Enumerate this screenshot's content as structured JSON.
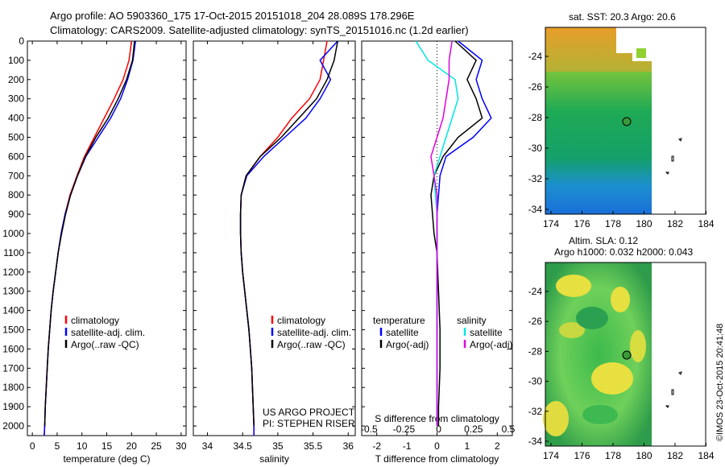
{
  "header": {
    "line1": "Argo profile: AO 5903360_175 17-Oct-2015 20151018_204 28.089S 178.296E",
    "line2": "Climatology: CARS2009. Satellite-adjusted climatology: synTS_20151016.nc (1.2d earlier)"
  },
  "colors": {
    "climatology": "#ff0000",
    "satellite": "#0000ff",
    "argo": "#000000",
    "s_sat": "#00e5e5",
    "s_argo": "#e000e0"
  },
  "chart_data": [
    {
      "type": "line",
      "id": "temperature",
      "xlabel": "temperature (deg C)",
      "ylabel": "",
      "xlim": [
        -1,
        31
      ],
      "ylim": [
        2050,
        0
      ],
      "xticks": [
        0,
        5,
        10,
        15,
        20,
        25,
        30
      ],
      "yticks": [
        0,
        100,
        200,
        300,
        400,
        500,
        600,
        700,
        800,
        900,
        1000,
        1100,
        1200,
        1300,
        1400,
        1500,
        1600,
        1700,
        1800,
        1900,
        2000
      ],
      "legend": [
        "climatology",
        "satellite-adj. clim.",
        "Argo(..raw -QC)"
      ],
      "series": [
        {
          "name": "climatology",
          "color": "red",
          "points": [
            [
              20.0,
              0
            ],
            [
              19.5,
              100
            ],
            [
              18.3,
              200
            ],
            [
              16.5,
              300
            ],
            [
              14.5,
              400
            ],
            [
              12.5,
              500
            ],
            [
              10.5,
              600
            ],
            [
              9.0,
              700
            ],
            [
              7.6,
              800
            ],
            [
              6.6,
              900
            ],
            [
              5.8,
              1000
            ],
            [
              5.2,
              1100
            ],
            [
              4.7,
              1200
            ],
            [
              4.2,
              1300
            ],
            [
              3.8,
              1400
            ],
            [
              3.5,
              1500
            ],
            [
              3.2,
              1600
            ],
            [
              3.0,
              1700
            ],
            [
              2.8,
              1800
            ],
            [
              2.6,
              1900
            ],
            [
              2.5,
              2000
            ],
            [
              2.4,
              2050
            ]
          ]
        },
        {
          "name": "satellite-adj. clim.",
          "color": "blue",
          "points": [
            [
              20.8,
              0
            ],
            [
              20.3,
              100
            ],
            [
              19.2,
              200
            ],
            [
              17.8,
              300
            ],
            [
              15.8,
              400
            ],
            [
              13.3,
              500
            ],
            [
              10.8,
              600
            ],
            [
              9.1,
              700
            ],
            [
              7.7,
              800
            ],
            [
              6.6,
              900
            ],
            [
              5.8,
              1000
            ],
            [
              5.2,
              1100
            ],
            [
              4.7,
              1200
            ],
            [
              4.2,
              1300
            ],
            [
              3.8,
              1400
            ],
            [
              3.5,
              1500
            ],
            [
              3.2,
              1600
            ],
            [
              3.0,
              1700
            ],
            [
              2.8,
              1800
            ],
            [
              2.6,
              1900
            ],
            [
              2.5,
              2000
            ],
            [
              2.4,
              2050
            ]
          ]
        },
        {
          "name": "Argo(..raw -QC)",
          "color": "black",
          "points": [
            [
              20.6,
              0
            ],
            [
              20.2,
              100
            ],
            [
              19.0,
              200
            ],
            [
              17.3,
              300
            ],
            [
              15.3,
              400
            ],
            [
              12.8,
              500
            ],
            [
              10.7,
              600
            ],
            [
              9.1,
              700
            ],
            [
              7.7,
              800
            ],
            [
              6.7,
              900
            ],
            [
              5.9,
              1000
            ],
            [
              5.2,
              1100
            ],
            [
              4.7,
              1200
            ],
            [
              4.2,
              1300
            ],
            [
              3.8,
              1400
            ],
            [
              3.5,
              1500
            ],
            [
              3.2,
              1600
            ],
            [
              3.0,
              1700
            ],
            [
              2.8,
              1800
            ],
            [
              2.6,
              1900
            ],
            [
              2.5,
              2000
            ]
          ]
        }
      ]
    },
    {
      "type": "line",
      "id": "salinity",
      "xlabel": "salinity",
      "ylabel": "",
      "xlim": [
        33.8,
        36.1
      ],
      "ylim": [
        2050,
        0
      ],
      "xticks": [
        34,
        34.5,
        35,
        35.5,
        36
      ],
      "legend": [
        "climatology",
        "satellite-adj. clim.",
        "Argo(..raw -QC)"
      ],
      "annotation": [
        "US ARGO PROJECT",
        "PI: STEPHEN RISER"
      ],
      "series": [
        {
          "name": "climatology",
          "color": "red",
          "points": [
            [
              35.7,
              0
            ],
            [
              35.65,
              100
            ],
            [
              35.6,
              200
            ],
            [
              35.45,
              300
            ],
            [
              35.2,
              400
            ],
            [
              35.0,
              500
            ],
            [
              34.75,
              600
            ],
            [
              34.55,
              700
            ],
            [
              34.48,
              800
            ],
            [
              34.47,
              900
            ],
            [
              34.47,
              1000
            ],
            [
              34.48,
              1100
            ],
            [
              34.5,
              1200
            ],
            [
              34.53,
              1300
            ],
            [
              34.56,
              1400
            ],
            [
              34.59,
              1500
            ],
            [
              34.61,
              1600
            ],
            [
              34.63,
              1700
            ],
            [
              34.64,
              1800
            ],
            [
              34.65,
              1900
            ],
            [
              34.66,
              2000
            ],
            [
              34.66,
              2050
            ]
          ]
        },
        {
          "name": "satellite-adj. clim.",
          "color": "blue",
          "points": [
            [
              35.85,
              0
            ],
            [
              35.6,
              100
            ],
            [
              35.75,
              200
            ],
            [
              35.6,
              300
            ],
            [
              35.4,
              400
            ],
            [
              35.1,
              500
            ],
            [
              34.8,
              600
            ],
            [
              34.56,
              700
            ],
            [
              34.48,
              800
            ],
            [
              34.47,
              900
            ],
            [
              34.47,
              1000
            ],
            [
              34.48,
              1100
            ],
            [
              34.5,
              1200
            ],
            [
              34.53,
              1300
            ],
            [
              34.56,
              1400
            ],
            [
              34.59,
              1500
            ],
            [
              34.61,
              1600
            ],
            [
              34.63,
              1700
            ],
            [
              34.64,
              1800
            ],
            [
              34.65,
              1900
            ],
            [
              34.66,
              2000
            ],
            [
              34.66,
              2050
            ]
          ]
        },
        {
          "name": "Argo(..raw -QC)",
          "color": "black",
          "points": [
            [
              35.85,
              0
            ],
            [
              35.8,
              100
            ],
            [
              35.7,
              200
            ],
            [
              35.55,
              300
            ],
            [
              35.3,
              400
            ],
            [
              35.05,
              500
            ],
            [
              34.75,
              600
            ],
            [
              34.55,
              700
            ],
            [
              34.48,
              800
            ],
            [
              34.47,
              900
            ],
            [
              34.47,
              1000
            ],
            [
              34.48,
              1100
            ],
            [
              34.5,
              1200
            ],
            [
              34.53,
              1300
            ],
            [
              34.56,
              1400
            ],
            [
              34.59,
              1500
            ],
            [
              34.61,
              1600
            ],
            [
              34.63,
              1700
            ],
            [
              34.64,
              1800
            ],
            [
              34.65,
              1900
            ],
            [
              34.66,
              2000
            ]
          ]
        }
      ]
    },
    {
      "type": "line",
      "id": "differences",
      "xlabel": "T difference from climatology",
      "xlabel_top": "S difference from climatology",
      "xlim": [
        -2.5,
        2.5
      ],
      "ylim": [
        2050,
        0
      ],
      "xticks_T": [
        -2,
        -1,
        0,
        1,
        2
      ],
      "xticks_S": [
        "-0.5",
        "-0.25",
        "0",
        "0.25",
        "0.5"
      ],
      "legend": {
        "temperature": [
          "temperature",
          "satellite",
          "Argo(-adj)"
        ],
        "salinity": [
          "salinity",
          "satellite",
          "Argo(-adj)"
        ]
      },
      "series": [
        {
          "name": "T satellite",
          "color": "blue",
          "points": [
            [
              0.7,
              0
            ],
            [
              1.5,
              100
            ],
            [
              1.3,
              200
            ],
            [
              1.5,
              300
            ],
            [
              1.8,
              400
            ],
            [
              1.2,
              500
            ],
            [
              0.3,
              600
            ],
            [
              0.1,
              700
            ],
            [
              0.05,
              800
            ],
            [
              0,
              900
            ],
            [
              0,
              1000
            ],
            [
              0,
              2000
            ]
          ]
        },
        {
          "name": "T Argo(-adj)",
          "color": "black",
          "points": [
            [
              0.6,
              0
            ],
            [
              1.3,
              100
            ],
            [
              1.0,
              200
            ],
            [
              1.3,
              300
            ],
            [
              1.5,
              400
            ],
            [
              0.7,
              500
            ],
            [
              0.2,
              600
            ],
            [
              -0.1,
              700
            ],
            [
              -0.2,
              800
            ],
            [
              -0.15,
              900
            ],
            [
              -0.1,
              1000
            ],
            [
              0,
              1100
            ],
            [
              0.05,
              1300
            ],
            [
              0.1,
              1500
            ],
            [
              0.1,
              1700
            ],
            [
              0.05,
              1900
            ],
            [
              0.05,
              2000
            ]
          ]
        },
        {
          "name": "S satellite",
          "color": "cyan",
          "points": [
            [
              -0.7,
              0
            ],
            [
              -0.3,
              100
            ],
            [
              0.6,
              200
            ],
            [
              0.7,
              300
            ],
            [
              0.5,
              400
            ],
            [
              0.3,
              500
            ],
            [
              0.1,
              600
            ],
            [
              -0.1,
              700
            ],
            [
              -0.05,
              800
            ],
            [
              0,
              900
            ],
            [
              0,
              1000
            ],
            [
              0,
              2000
            ]
          ]
        },
        {
          "name": "S Argo(-adj)",
          "color": "magenta",
          "points": [
            [
              0.5,
              0
            ],
            [
              0.4,
              100
            ],
            [
              0.4,
              200
            ],
            [
              0.3,
              300
            ],
            [
              0.2,
              400
            ],
            [
              0.0,
              500
            ],
            [
              -0.2,
              600
            ],
            [
              -0.1,
              700
            ],
            [
              0,
              800
            ],
            [
              0,
              900
            ],
            [
              0,
              1000
            ],
            [
              0,
              2000
            ]
          ]
        }
      ]
    }
  ],
  "maps": {
    "sst": {
      "title": "sat. SST: 20.3  Argo: 20.6",
      "xticks": [
        "174",
        "176",
        "178",
        "180",
        "182",
        "184"
      ],
      "yticks": [
        "-24",
        "-26",
        "-28",
        "-30",
        "-32",
        "-34"
      ]
    },
    "sla": {
      "title1": "Altim. SLA: 0.12",
      "title2": "Argo h1000: 0.032 h2000: 0.043",
      "xticks": [
        "174",
        "176",
        "178",
        "180",
        "182",
        "184"
      ],
      "yticks": [
        "-24",
        "-26",
        "-28",
        "-30",
        "-32",
        "-34"
      ]
    }
  },
  "footer": {
    "credit": "©IMOS 23-Oct-2015 20:41:48"
  }
}
